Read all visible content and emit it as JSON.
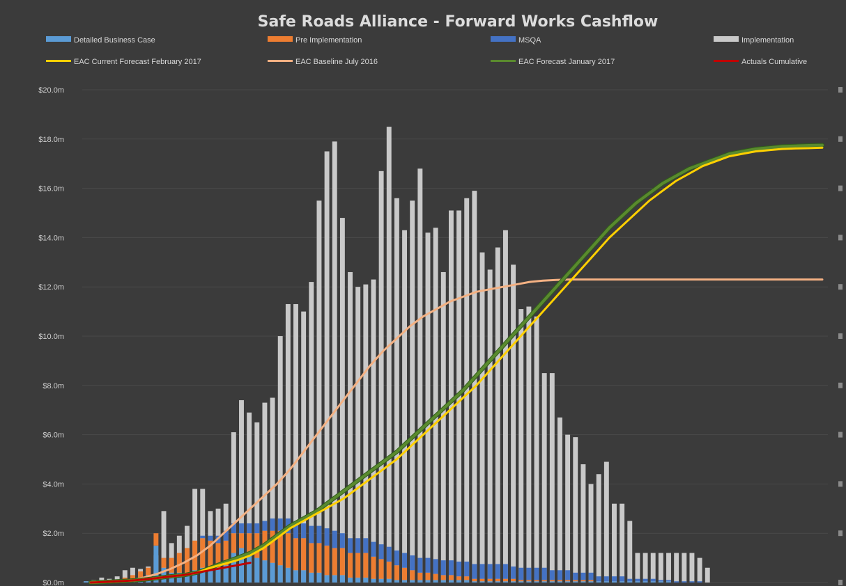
{
  "chart_data": {
    "type": "bar",
    "title": "Safe Roads Alliance - Forward Works Cashflow",
    "xlabel": "",
    "ylabel": "",
    "ylim": [
      0,
      20
    ],
    "y_ticks": [
      "$0.0m",
      "$2.0m",
      "$4.0m",
      "$6.0m",
      "$8.0m",
      "$10.0m",
      "$12.0m",
      "$14.0m",
      "$16.0m",
      "$18.0m",
      "$20.0m"
    ],
    "grid": true,
    "legend_position": "top",
    "legend": [
      {
        "name": "Detailed Business Case",
        "kind": "bar",
        "color": "#5b9bd5"
      },
      {
        "name": "Pre Implementation",
        "kind": "bar",
        "color": "#ed7d31"
      },
      {
        "name": "MSQA",
        "kind": "bar",
        "color": "#4472c4"
      },
      {
        "name": "Implementation",
        "kind": "bar",
        "color": "#c9c9c9"
      },
      {
        "name": "EAC Current Forecast February 2017",
        "kind": "line",
        "color": "#ffd000"
      },
      {
        "name": "EAC Baseline July 2016",
        "kind": "line",
        "color": "#f4b183"
      },
      {
        "name": "EAC Forecast January 2017",
        "kind": "line",
        "color": "#5a8a2e"
      },
      {
        "name": "Actuals Cumulative",
        "kind": "line",
        "color": "#c00000"
      }
    ],
    "bar_series": {
      "detailed_business_case": [
        0.05,
        0.05,
        0.05,
        0.05,
        0.1,
        0.1,
        0.1,
        0.15,
        0.3,
        1.5,
        0.6,
        0.4,
        0.4,
        0.4,
        0.5,
        0.6,
        0.6,
        0.6,
        0.7,
        1.2,
        1.4,
        1.2,
        1.0,
        0.9,
        0.8,
        0.7,
        0.6,
        0.5,
        0.5,
        0.4,
        0.4,
        0.3,
        0.3,
        0.3,
        0.2,
        0.2,
        0.2,
        0.15,
        0.15,
        0.15,
        0.1,
        0.1,
        0.1,
        0.1,
        0.1,
        0.1,
        0.1,
        0.1,
        0.1,
        0.1,
        0.05,
        0.05,
        0.05,
        0.05,
        0.05,
        0.05,
        0.05,
        0.05,
        0.05,
        0.05,
        0.05,
        0.05,
        0.05,
        0.05,
        0.05,
        0.05,
        0.05,
        0.05,
        0.05,
        0.05,
        0.05,
        0.05,
        0.05,
        0.05,
        0.05,
        0.05,
        0,
        0,
        0,
        0,
        0,
        0,
        0,
        0,
        0,
        0,
        0,
        0,
        0,
        0,
        0,
        0,
        0,
        0,
        0,
        0
      ],
      "pre_implementation": [
        0,
        0,
        0,
        0,
        0,
        0.1,
        0.2,
        0.3,
        0.3,
        0.5,
        0.4,
        0.6,
        0.8,
        1.0,
        1.2,
        1.2,
        1.1,
        1.0,
        1.0,
        0.8,
        0.6,
        0.8,
        1.0,
        1.2,
        1.3,
        1.4,
        1.4,
        1.3,
        1.3,
        1.2,
        1.2,
        1.2,
        1.1,
        1.1,
        1.0,
        1.0,
        1.0,
        0.9,
        0.8,
        0.7,
        0.6,
        0.5,
        0.4,
        0.3,
        0.3,
        0.25,
        0.2,
        0.2,
        0.15,
        0.15,
        0.1,
        0.1,
        0.1,
        0.1,
        0.1,
        0.1,
        0.05,
        0.05,
        0.05,
        0.05,
        0.05,
        0.05,
        0.05,
        0.05,
        0.05,
        0.05,
        0,
        0,
        0,
        0,
        0,
        0,
        0,
        0,
        0,
        0,
        0,
        0,
        0,
        0,
        0,
        0,
        0,
        0,
        0,
        0,
        0,
        0,
        0,
        0,
        0,
        0,
        0,
        0,
        0,
        0
      ],
      "msqa": [
        0,
        0,
        0,
        0,
        0,
        0,
        0,
        0,
        0,
        0,
        0,
        0,
        0,
        0,
        0,
        0.1,
        0.2,
        0.3,
        0.4,
        0.4,
        0.4,
        0.4,
        0.4,
        0.4,
        0.5,
        0.5,
        0.6,
        0.6,
        0.6,
        0.7,
        0.7,
        0.7,
        0.7,
        0.6,
        0.6,
        0.6,
        0.6,
        0.6,
        0.6,
        0.6,
        0.6,
        0.6,
        0.6,
        0.6,
        0.6,
        0.6,
        0.6,
        0.6,
        0.6,
        0.6,
        0.6,
        0.6,
        0.6,
        0.6,
        0.6,
        0.5,
        0.5,
        0.5,
        0.5,
        0.5,
        0.4,
        0.4,
        0.4,
        0.3,
        0.3,
        0.3,
        0.2,
        0.2,
        0.2,
        0.2,
        0.1,
        0.1,
        0.1,
        0.1,
        0.05,
        0.05,
        0.05,
        0.05,
        0.05,
        0.05,
        0,
        0,
        0,
        0,
        0,
        0,
        0,
        0,
        0,
        0,
        0,
        0,
        0,
        0,
        0,
        0
      ],
      "implementation_total": [
        0.05,
        0.1,
        0.2,
        0.15,
        0.25,
        0.5,
        0.6,
        0.55,
        0.65,
        1.1,
        2.9,
        1.6,
        1.9,
        2.3,
        3.8,
        3.8,
        2.9,
        3.0,
        3.2,
        6.1,
        7.4,
        6.9,
        6.5,
        7.3,
        7.5,
        10.0,
        11.3,
        11.3,
        11.0,
        12.2,
        15.5,
        17.5,
        17.9,
        14.8,
        12.6,
        12.0,
        12.1,
        12.3,
        16.7,
        18.5,
        15.6,
        14.3,
        15.5,
        16.8,
        14.2,
        14.4,
        12.6,
        15.1,
        15.1,
        15.6,
        15.9,
        13.4,
        12.7,
        13.6,
        14.3,
        12.9,
        11.1,
        11.2,
        10.8,
        8.5,
        8.5,
        6.7,
        6.0,
        5.9,
        4.8,
        4.0,
        4.4,
        4.9,
        3.2,
        3.2,
        2.5,
        1.2,
        1.2,
        1.2,
        1.2,
        1.2,
        1.2,
        1.2,
        1.2,
        1.0,
        0.6,
        0,
        0,
        0,
        0,
        0,
        0,
        0,
        0,
        0,
        0,
        0,
        0,
        0,
        0,
        0
      ]
    },
    "line_series": {
      "eac_current_forecast_feb_2017": [
        0,
        0.02,
        0.05,
        0.08,
        0.12,
        0.18,
        0.25,
        0.3,
        0.4,
        0.6,
        0.75,
        0.9,
        1.1,
        1.4,
        1.8,
        2.2,
        2.5,
        2.8,
        3.1,
        3.4,
        3.8,
        4.2,
        4.6,
        5.0,
        5.5,
        6.0,
        6.5,
        7.0,
        7.5,
        8.0,
        8.6,
        9.2,
        9.8,
        10.4,
        11.0,
        11.6,
        12.2,
        12.8,
        13.4,
        14.0,
        14.5,
        15.0,
        15.5,
        15.9,
        16.3,
        16.6,
        16.9,
        17.1,
        17.3,
        17.4,
        17.5,
        17.55,
        17.6,
        17.62,
        17.63,
        17.65
      ],
      "eac_baseline_july_2016": [
        0,
        0.02,
        0.05,
        0.1,
        0.2,
        0.35,
        0.55,
        0.8,
        1.1,
        1.5,
        2.0,
        2.5,
        3.0,
        3.5,
        4.0,
        4.6,
        5.3,
        6.0,
        6.7,
        7.4,
        8.1,
        8.8,
        9.4,
        9.9,
        10.4,
        10.8,
        11.1,
        11.4,
        11.6,
        11.8,
        11.9,
        12.0,
        12.1,
        12.2,
        12.25,
        12.28,
        12.3,
        12.3,
        12.3,
        12.3,
        12.3,
        12.3,
        12.3,
        12.3,
        12.3,
        12.3,
        12.3,
        12.3,
        12.3,
        12.3,
        12.3,
        12.3,
        12.3,
        12.3,
        12.3,
        12.3
      ],
      "eac_forecast_jan_2017": [
        0,
        0.02,
        0.05,
        0.08,
        0.12,
        0.18,
        0.25,
        0.3,
        0.4,
        0.6,
        0.8,
        1.0,
        1.2,
        1.5,
        1.9,
        2.3,
        2.6,
        2.9,
        3.3,
        3.7,
        4.1,
        4.5,
        4.9,
        5.3,
        5.8,
        6.3,
        6.8,
        7.3,
        7.8,
        8.4,
        9.0,
        9.6,
        10.2,
        10.8,
        11.4,
        12.0,
        12.6,
        13.2,
        13.8,
        14.4,
        14.9,
        15.4,
        15.8,
        16.2,
        16.5,
        16.8,
        17.0,
        17.2,
        17.4,
        17.5,
        17.6,
        17.65,
        17.7,
        17.72,
        17.74,
        17.75
      ],
      "actuals_cumulative": [
        0,
        0.02,
        0.05,
        0.08,
        0.12,
        0.18,
        0.25,
        0.3,
        0.4,
        0.5,
        0.6,
        0.7,
        0.8
      ]
    }
  }
}
